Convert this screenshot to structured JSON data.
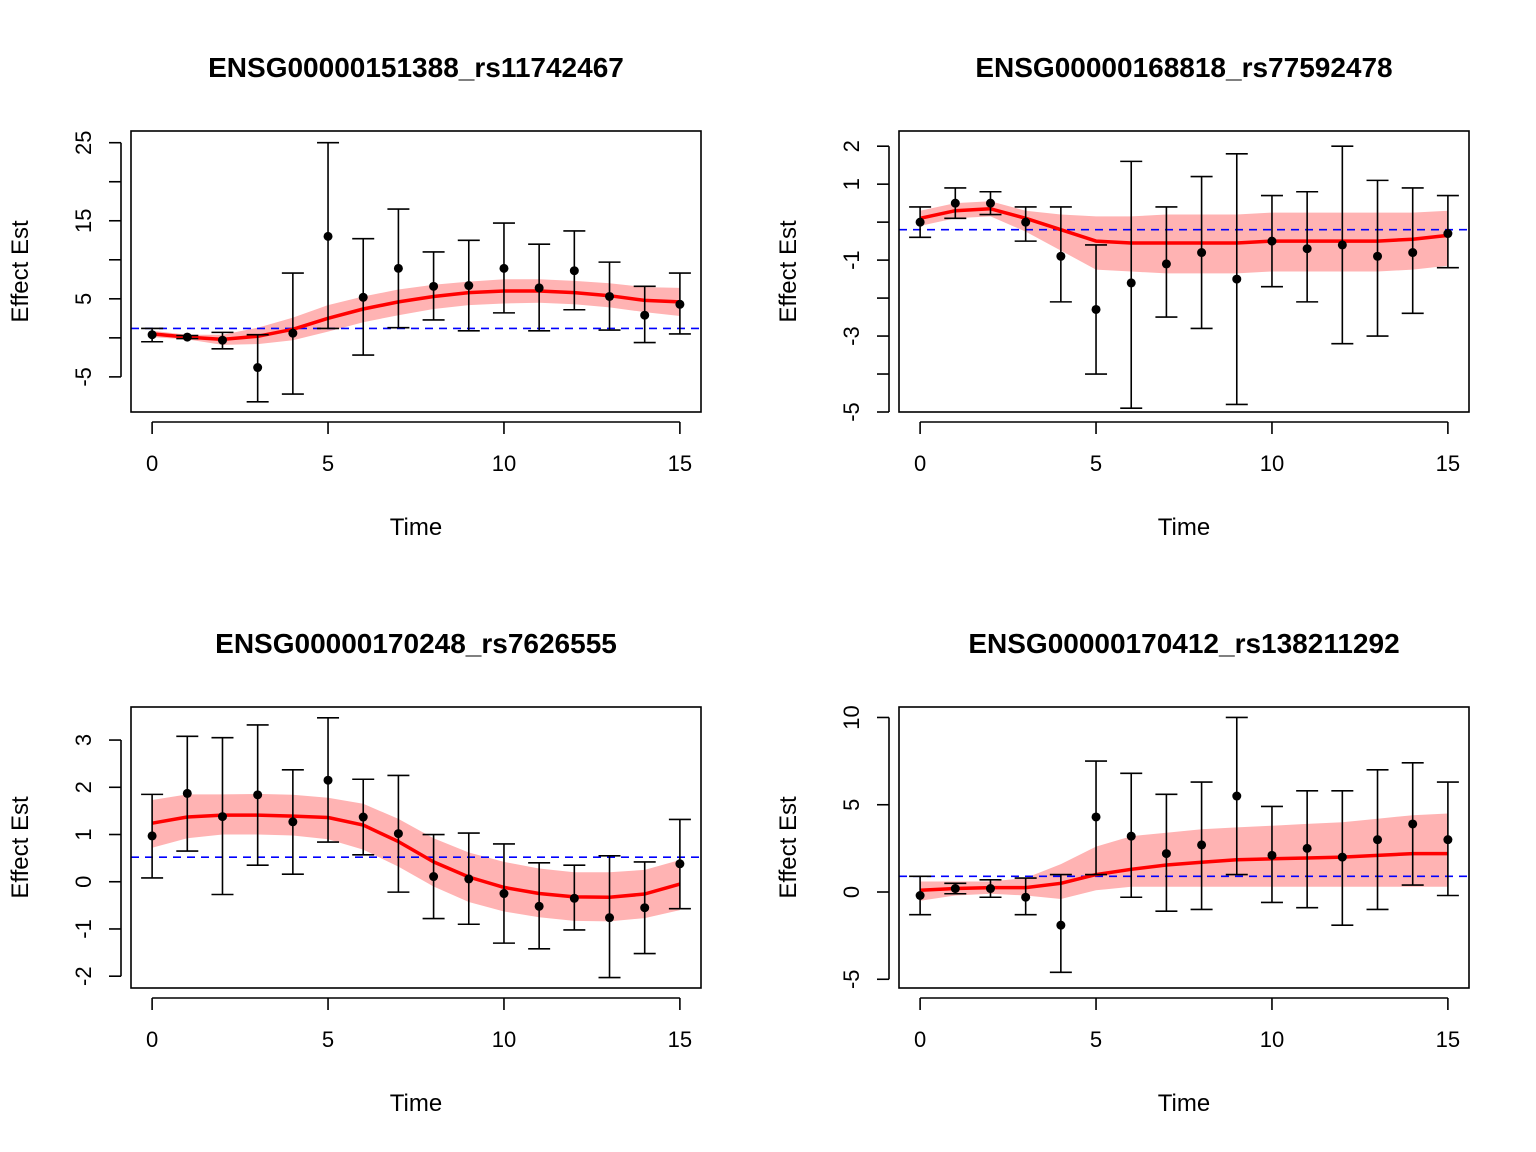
{
  "figure_title": "",
  "chart_data": [
    {
      "type": "line",
      "title": "ENSG00000151388_rs11742467",
      "xlabel": "Time",
      "ylabel": "Effect Est",
      "xlim": [
        -0.6,
        15.6
      ],
      "ylim": [
        -9.5,
        26.5
      ],
      "xticks": [
        0,
        5,
        10,
        15
      ],
      "yticks": [
        -5,
        0,
        5,
        10,
        15,
        20,
        25
      ],
      "ytick_labels_shown": [
        -5,
        5,
        15,
        25
      ],
      "reference_line": 1.2,
      "x": [
        0,
        1,
        2,
        3,
        4,
        5,
        6,
        7,
        8,
        9,
        10,
        11,
        12,
        13,
        14,
        15
      ],
      "estimate": [
        0.4,
        0.1,
        -0.3,
        -3.8,
        0.6,
        13.0,
        5.2,
        8.9,
        6.6,
        6.7,
        8.9,
        6.4,
        8.6,
        5.3,
        2.9,
        4.3
      ],
      "ci_lower": [
        -0.5,
        -0.1,
        -1.4,
        -8.2,
        -7.2,
        1.2,
        -2.2,
        1.3,
        2.3,
        0.9,
        3.2,
        0.9,
        3.6,
        1.0,
        -0.6,
        0.5
      ],
      "ci_upper": [
        1.2,
        0.3,
        0.7,
        0.4,
        8.3,
        25.0,
        12.7,
        16.5,
        11.0,
        12.5,
        14.7,
        12.0,
        13.7,
        9.7,
        6.6,
        8.3
      ],
      "smooth": [
        0.5,
        0.1,
        -0.2,
        0.2,
        1.1,
        2.5,
        3.7,
        4.6,
        5.3,
        5.8,
        6.0,
        6.0,
        5.8,
        5.4,
        4.8,
        4.6
      ],
      "band_lower": [
        0.1,
        -0.2,
        -0.9,
        -0.8,
        -0.3,
        0.8,
        2.0,
        2.9,
        3.7,
        4.2,
        4.4,
        4.5,
        4.3,
        3.9,
        3.3,
        2.8
      ],
      "band_upper": [
        0.9,
        0.4,
        0.4,
        1.3,
        2.6,
        4.2,
        5.3,
        6.2,
        6.8,
        7.2,
        7.5,
        7.5,
        7.3,
        7.0,
        6.5,
        6.4
      ]
    },
    {
      "type": "line",
      "title": "ENSG00000168818_rs77592478",
      "xlabel": "Time",
      "ylabel": "Effect Est",
      "xlim": [
        -0.6,
        15.6
      ],
      "ylim": [
        -5.0,
        2.4
      ],
      "xticks": [
        0,
        5,
        10,
        15
      ],
      "yticks": [
        -5,
        -4,
        -3,
        -2,
        -1,
        0,
        1,
        2
      ],
      "ytick_labels_shown": [
        -5,
        -3,
        -1,
        1,
        2
      ],
      "reference_line": -0.2,
      "x": [
        0,
        1,
        2,
        3,
        4,
        5,
        6,
        7,
        8,
        9,
        10,
        11,
        12,
        13,
        14,
        15
      ],
      "estimate": [
        0.0,
        0.5,
        0.5,
        0.0,
        -0.9,
        -2.3,
        -1.6,
        -1.1,
        -0.8,
        -1.5,
        -0.5,
        -0.7,
        -0.6,
        -0.9,
        -0.8,
        -0.3
      ],
      "ci_lower": [
        -0.4,
        0.1,
        0.2,
        -0.5,
        -2.1,
        -4.0,
        -4.9,
        -2.5,
        -2.8,
        -4.8,
        -1.7,
        -2.1,
        -3.2,
        -3.0,
        -2.4,
        -1.2
      ],
      "ci_upper": [
        0.4,
        0.9,
        0.8,
        0.4,
        0.4,
        -0.6,
        1.6,
        0.4,
        1.2,
        1.8,
        0.7,
        0.8,
        2.0,
        1.1,
        0.9,
        0.7
      ],
      "smooth": [
        0.1,
        0.3,
        0.35,
        0.1,
        -0.2,
        -0.5,
        -0.55,
        -0.55,
        -0.55,
        -0.55,
        -0.5,
        -0.5,
        -0.5,
        -0.5,
        -0.45,
        -0.35
      ],
      "band_lower": [
        -0.1,
        0.1,
        0.15,
        -0.25,
        -0.75,
        -1.25,
        -1.3,
        -1.35,
        -1.35,
        -1.35,
        -1.3,
        -1.3,
        -1.3,
        -1.3,
        -1.25,
        -1.15
      ],
      "band_upper": [
        0.3,
        0.5,
        0.55,
        0.3,
        0.2,
        0.15,
        0.15,
        0.2,
        0.2,
        0.2,
        0.25,
        0.25,
        0.25,
        0.25,
        0.25,
        0.3
      ]
    },
    {
      "type": "line",
      "title": "ENSG00000170248_rs7626555",
      "xlabel": "Time",
      "ylabel": "Effect Est",
      "xlim": [
        -0.6,
        15.6
      ],
      "ylim": [
        -2.25,
        3.7
      ],
      "xticks": [
        0,
        5,
        10,
        15
      ],
      "yticks": [
        -2,
        -1,
        0,
        1,
        2,
        3
      ],
      "ytick_labels_shown": [
        -2,
        -1,
        0,
        1,
        2,
        3
      ],
      "reference_line": 0.52,
      "x": [
        0,
        1,
        2,
        3,
        4,
        5,
        6,
        7,
        8,
        9,
        10,
        11,
        12,
        13,
        14,
        15
      ],
      "estimate": [
        0.97,
        1.87,
        1.38,
        1.84,
        1.27,
        2.15,
        1.37,
        1.02,
        0.11,
        0.06,
        -0.25,
        -0.52,
        -0.35,
        -0.76,
        -0.55,
        0.38
      ],
      "ci_lower": [
        0.08,
        0.65,
        -0.27,
        0.35,
        0.16,
        0.84,
        0.57,
        -0.22,
        -0.78,
        -0.9,
        -1.3,
        -1.42,
        -1.02,
        -2.03,
        -1.52,
        -0.57
      ],
      "ci_upper": [
        1.85,
        3.08,
        3.05,
        3.32,
        2.37,
        3.47,
        2.17,
        2.25,
        1.0,
        1.03,
        0.8,
        0.4,
        0.35,
        0.55,
        0.42,
        1.32
      ],
      "smooth": [
        1.24,
        1.37,
        1.41,
        1.41,
        1.39,
        1.36,
        1.2,
        0.85,
        0.42,
        0.1,
        -0.12,
        -0.25,
        -0.32,
        -0.33,
        -0.26,
        -0.05
      ],
      "band_lower": [
        0.72,
        0.92,
        1.0,
        1.0,
        0.98,
        0.9,
        0.68,
        0.32,
        -0.1,
        -0.43,
        -0.63,
        -0.75,
        -0.83,
        -0.84,
        -0.77,
        -0.6
      ],
      "band_upper": [
        1.73,
        1.85,
        1.85,
        1.86,
        1.84,
        1.78,
        1.65,
        1.33,
        0.92,
        0.62,
        0.42,
        0.28,
        0.2,
        0.2,
        0.25,
        0.46
      ]
    },
    {
      "type": "line",
      "title": "ENSG00000170412_rs138211292",
      "xlabel": "Time",
      "ylabel": "Effect Est",
      "xlim": [
        -0.6,
        15.6
      ],
      "ylim": [
        -5.5,
        10.6
      ],
      "xticks": [
        0,
        5,
        10,
        15
      ],
      "yticks": [
        -5,
        0,
        5,
        10
      ],
      "ytick_labels_shown": [
        -5,
        0,
        5,
        10
      ],
      "reference_line": 0.9,
      "x": [
        0,
        1,
        2,
        3,
        4,
        5,
        6,
        7,
        8,
        9,
        10,
        11,
        12,
        13,
        14,
        15
      ],
      "estimate": [
        -0.2,
        0.2,
        0.2,
        -0.3,
        -1.9,
        4.3,
        3.2,
        2.2,
        2.7,
        5.5,
        2.1,
        2.5,
        2.0,
        3.0,
        3.9,
        3.0
      ],
      "ci_lower": [
        -1.3,
        -0.1,
        -0.3,
        -1.3,
        -4.6,
        1.0,
        -0.3,
        -1.1,
        -1.0,
        1.0,
        -0.6,
        -0.9,
        -1.9,
        -1.0,
        0.4,
        -0.2
      ],
      "ci_upper": [
        0.9,
        0.5,
        0.7,
        0.8,
        1.0,
        7.5,
        6.8,
        5.6,
        6.3,
        10.0,
        4.9,
        5.8,
        5.8,
        7.0,
        7.4,
        6.3
      ],
      "smooth": [
        0.1,
        0.2,
        0.25,
        0.25,
        0.5,
        1.0,
        1.3,
        1.55,
        1.7,
        1.85,
        1.9,
        1.95,
        2.0,
        2.1,
        2.2,
        2.2
      ],
      "band_lower": [
        -0.5,
        -0.2,
        -0.1,
        -0.2,
        -0.4,
        0.1,
        0.3,
        0.3,
        0.3,
        0.3,
        0.3,
        0.3,
        0.3,
        0.3,
        0.3,
        0.3
      ],
      "band_upper": [
        0.6,
        0.6,
        0.6,
        0.8,
        1.6,
        2.6,
        3.2,
        3.4,
        3.6,
        3.7,
        3.8,
        3.9,
        4.0,
        4.2,
        4.4,
        4.5
      ]
    }
  ],
  "colors": {
    "smooth_line": "#ff0000",
    "band_fill": "#ffb3b3",
    "reference_line": "#0000ff",
    "points": "#000000",
    "axes": "#000000"
  }
}
